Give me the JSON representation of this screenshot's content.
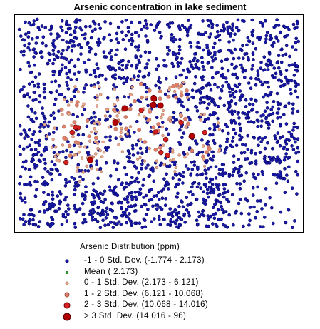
{
  "title": "Arsenic concentration in lake sediment",
  "legend": {
    "title": "Arsenic Distribution (ppm)",
    "classes": [
      {
        "label": "-1 - 0 Std. Dev. (-1.774 - 2.173)",
        "color": "#1a1aa8",
        "icon": "small-blue-dot"
      },
      {
        "label": "Mean ( 2.173)",
        "color": "#2db82d",
        "icon": "small-green-dot"
      },
      {
        "label": "0 - 1 Std. Dev. (2.173 - 6.121)",
        "color": "#e8a98a",
        "icon": "small-salmon-dot"
      },
      {
        "label": "1 - 2 Std. Dev. (6.121 - 10.068)",
        "color": "#e0806a",
        "icon": "medium-salmon-dot"
      },
      {
        "label": "2 - 3 Std. Dev. (10.068 - 14.016)",
        "color": "#d42020",
        "icon": "large-red-dot"
      },
      {
        "label": "> 3 Std. Dev. (14.016 - 96)",
        "color": "#b30000",
        "icon": "largest-darkred-dot"
      }
    ]
  }
}
